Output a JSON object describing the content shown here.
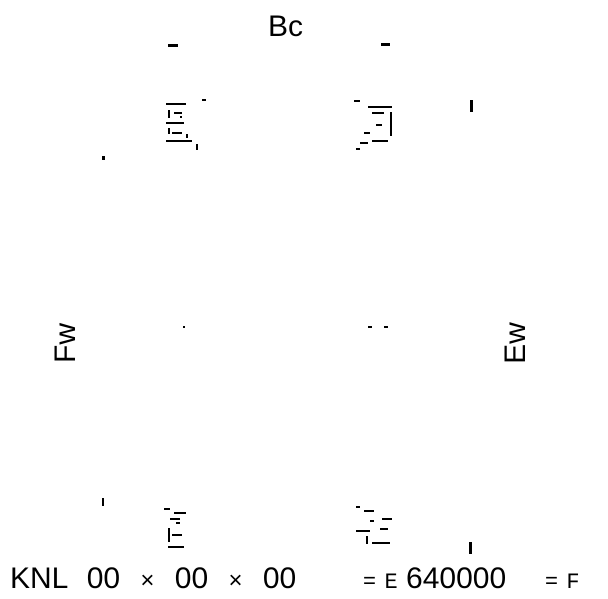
{
  "labels": {
    "top": "Bc",
    "left": "Fw",
    "right": "Ew"
  },
  "footer": {
    "prefix": "KNL",
    "dim_a": "00",
    "dim_b": "00",
    "dim_c": "00",
    "times_symbol": "×",
    "value_equals": "=",
    "value_letter": "E",
    "value_number": "640000",
    "flag_equals": "=",
    "flag_letter": "F"
  },
  "colors": {
    "ink": "#000000",
    "background": "#ffffff"
  }
}
